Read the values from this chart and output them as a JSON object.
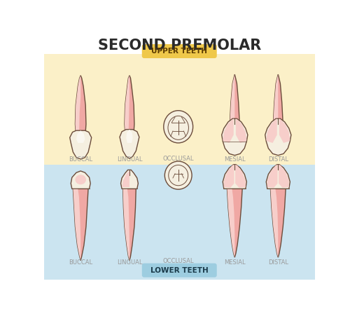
{
  "title": "SECOND PREMOLAR",
  "upper_label": "UPPER TEETH",
  "lower_label": "LOWER TEETH",
  "occlusal_label": "OCCLUSAL",
  "bg_upper": "#FBF0C8",
  "bg_lower": "#CBE4F0",
  "bg_white": "#FFFFFF",
  "label_upper_bg": "#EFC84A",
  "label_lower_bg": "#9DCDE0",
  "tooth_pink": "#F0A8A4",
  "tooth_light": "#F7CECA",
  "tooth_cream": "#F5EFE0",
  "tooth_white": "#FAF7F0",
  "outline_color": "#6B4C3B",
  "text_gray": "#999999",
  "title_color": "#2A2A2A",
  "label_upper_text": "#5A3A00",
  "label_lower_text": "#1A3A4A"
}
